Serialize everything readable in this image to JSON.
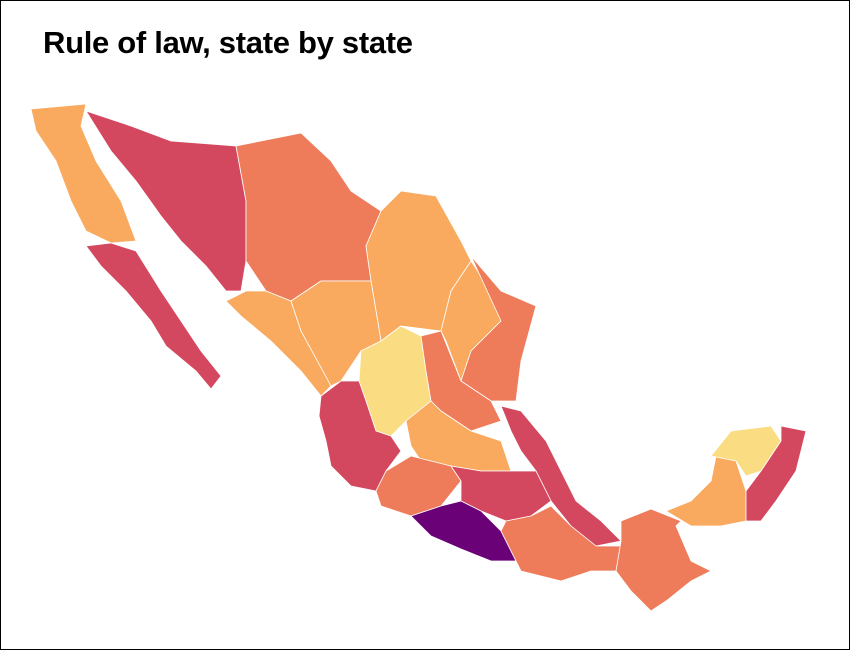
{
  "title": "Rule of law, state by state"
}
